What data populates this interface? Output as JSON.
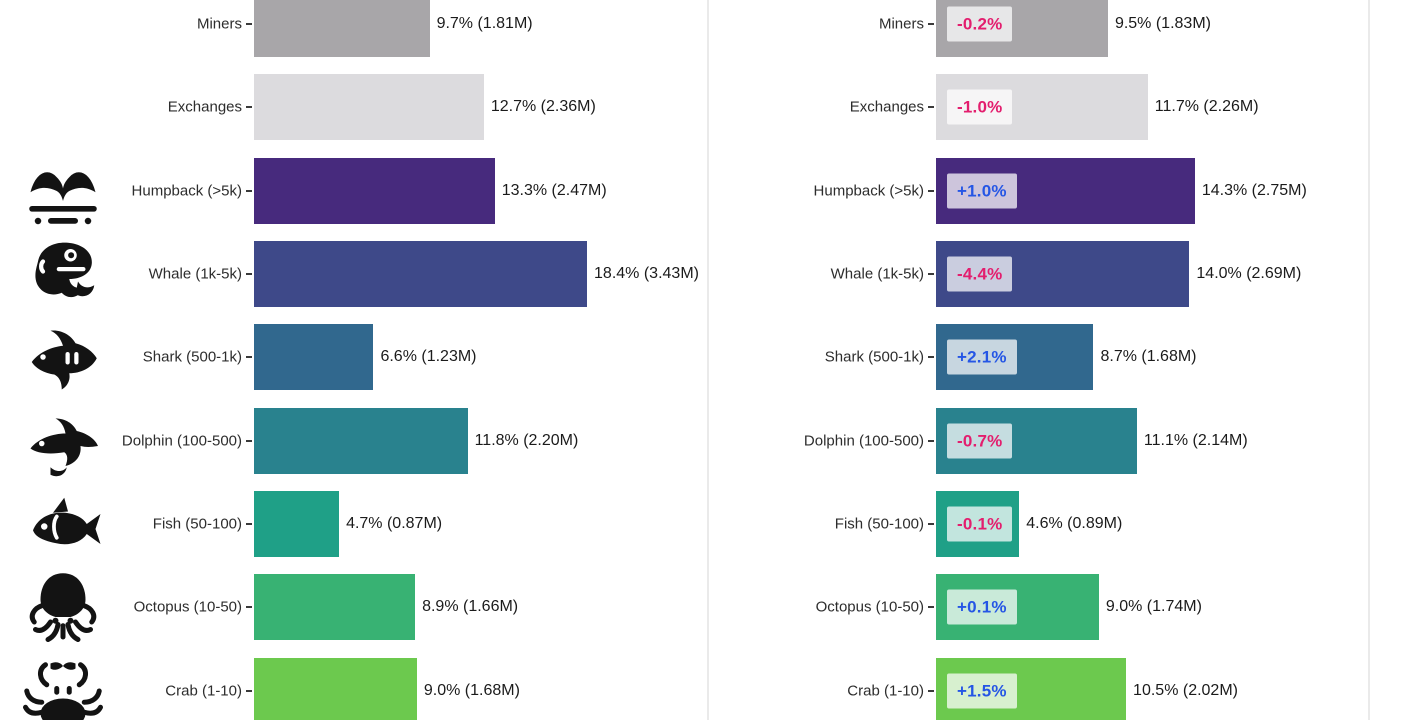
{
  "page": {
    "background_color": "#ffffff",
    "divider_color": "#eaeaea"
  },
  "chart_data": [
    {
      "type": "bar",
      "orientation": "horizontal",
      "title": "",
      "xlabel": "",
      "ylabel": "",
      "grid": false,
      "xlim_percent": [
        0,
        25
      ],
      "categories": [
        "Miners",
        "Exchanges",
        "Humpback (>5k)",
        "Whale (1k-5k)",
        "Shark (500-1k)",
        "Dolphin (100-500)",
        "Fish (50-100)",
        "Octopus (10-50)",
        "Crab (1-10)"
      ],
      "values_percent": [
        9.7,
        12.7,
        13.3,
        18.4,
        6.6,
        11.8,
        4.7,
        8.9,
        9.0
      ],
      "value_labels": [
        "9.7% (1.81M)",
        "12.7% (2.36M)",
        "13.3% (2.47M)",
        "18.4% (3.43M)",
        "6.6% (1.23M)",
        "11.8% (2.20M)",
        "4.7% (0.87M)",
        "8.9% (1.66M)",
        "9.0% (1.68M)"
      ],
      "bar_colors": [
        "#a8a6a9",
        "#dcdbde",
        "#472a7d",
        "#3e4989",
        "#31688e",
        "#29828e",
        "#1fa087",
        "#38b273",
        "#6cc94e"
      ]
    },
    {
      "type": "bar",
      "orientation": "horizontal",
      "title": "",
      "xlabel": "",
      "ylabel": "",
      "grid": false,
      "xlim_percent": [
        0,
        24
      ],
      "categories": [
        "Miners",
        "Exchanges",
        "Humpback (>5k)",
        "Whale (1k-5k)",
        "Shark (500-1k)",
        "Dolphin (100-500)",
        "Fish (50-100)",
        "Octopus (10-50)",
        "Crab (1-10)"
      ],
      "values_percent": [
        9.5,
        11.7,
        14.3,
        14.0,
        8.7,
        11.1,
        4.6,
        9.0,
        10.5
      ],
      "value_labels": [
        "9.5% (1.83M)",
        "11.7% (2.26M)",
        "14.3% (2.75M)",
        "14.0% (2.69M)",
        "8.7% (1.68M)",
        "11.1% (2.14M)",
        "4.6% (0.89M)",
        "9.0% (1.74M)",
        "10.5% (2.02M)"
      ],
      "changes": [
        "-0.2%",
        "-1.0%",
        "+1.0%",
        "-4.4%",
        "+2.1%",
        "-0.7%",
        "-0.1%",
        "+0.1%",
        "+1.5%"
      ],
      "change_negative_color": "#e31e6e",
      "change_positive_color": "#2556e5",
      "change_badge_background": "rgba(255,255,255,0.73)",
      "bar_colors": [
        "#a8a6a9",
        "#dcdbde",
        "#472a7d",
        "#3e4989",
        "#31688e",
        "#29828e",
        "#1fa087",
        "#38b273",
        "#6cc94e"
      ]
    }
  ],
  "icons": {
    "row_icons": [
      null,
      null,
      "humpback-tail-icon",
      "whale-icon",
      "shark-icon",
      "dolphin-icon",
      "fish-icon",
      "octopus-icon",
      "crab-icon"
    ],
    "icon_color": "#131313"
  }
}
